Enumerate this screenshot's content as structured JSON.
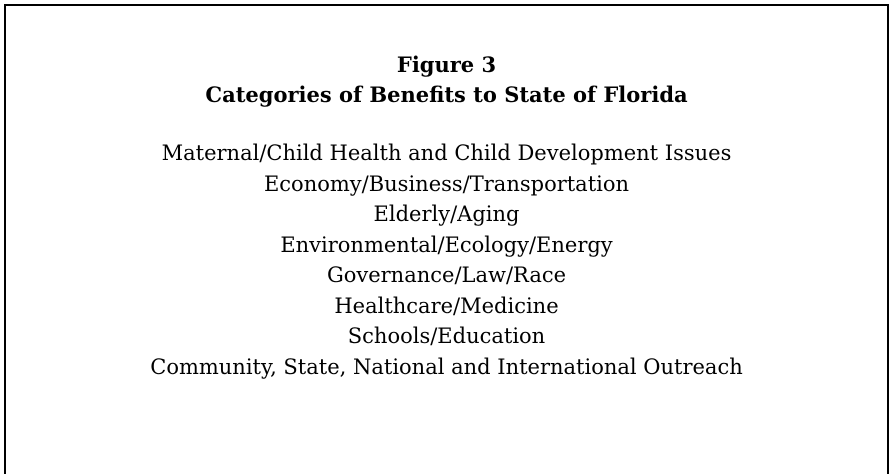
{
  "header": {
    "figure": "Figure 3",
    "title": "Categories of Benefits to State of Florida"
  },
  "items": [
    "Maternal/Child Health and Child Development Issues",
    "Economy/Business/Transportation",
    "Elderly/Aging",
    "Environmental/Ecology/Energy",
    "Governance/Law/Race",
    "Healthcare/Medicine",
    "Schools/Education",
    "Community, State, National and International Outreach"
  ]
}
